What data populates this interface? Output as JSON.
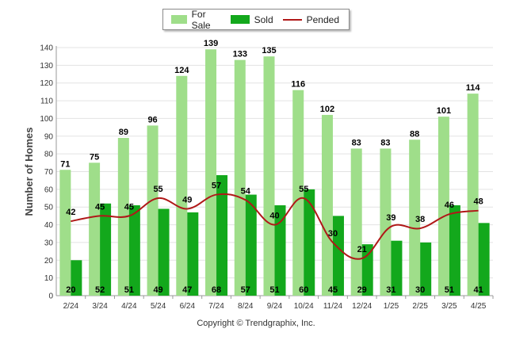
{
  "chart_data": {
    "type": "bar",
    "ylabel": "Number of Homes",
    "xlabel": "",
    "ylim": [
      0,
      140
    ],
    "yticks": [
      0,
      10,
      20,
      30,
      40,
      50,
      60,
      70,
      80,
      90,
      100,
      110,
      120,
      130,
      140
    ],
    "categories": [
      "2/24",
      "3/24",
      "4/24",
      "5/24",
      "6/24",
      "7/24",
      "8/24",
      "9/24",
      "10/24",
      "11/24",
      "12/24",
      "1/25",
      "2/25",
      "3/25",
      "4/25"
    ],
    "series": [
      {
        "name": "For Sale",
        "kind": "bar",
        "color": "#9fde8a",
        "values": [
          71,
          75,
          89,
          96,
          124,
          139,
          133,
          135,
          116,
          102,
          83,
          83,
          88,
          101,
          114
        ]
      },
      {
        "name": "Sold",
        "kind": "bar",
        "color": "#13a81c",
        "values": [
          20,
          52,
          51,
          49,
          47,
          68,
          57,
          51,
          60,
          45,
          29,
          31,
          30,
          51,
          41
        ]
      },
      {
        "name": "Pended",
        "kind": "line",
        "color": "#b01818",
        "values": [
          42,
          45,
          45,
          55,
          49,
          57,
          54,
          40,
          55,
          30,
          21,
          39,
          38,
          46,
          48
        ]
      }
    ],
    "legend_position": "top-center",
    "grid": true
  },
  "copyright": "Copyright © Trendgraphix, Inc."
}
